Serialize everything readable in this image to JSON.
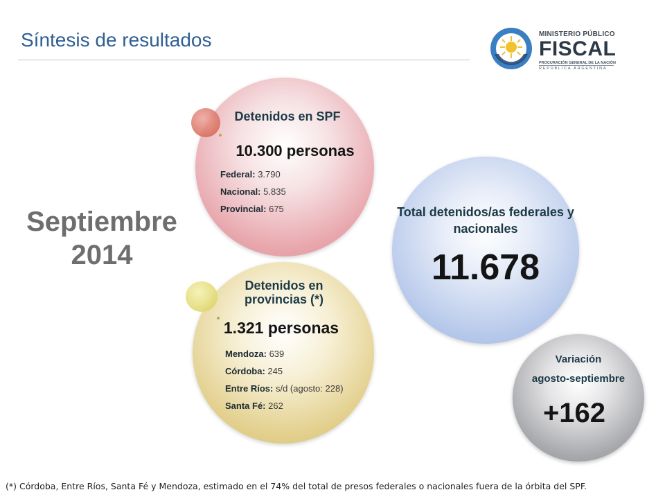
{
  "header": {
    "title": "Síntesis de resultados"
  },
  "logo": {
    "top_text": "MINISTERIO PÚBLICO",
    "main_text": "FISCAL",
    "sub_text_1": "PROCURACIÓN GENERAL DE LA NACIÓN",
    "sub_text_2": "REPÚBLICA ARGENTINA"
  },
  "period": {
    "month": "Septiembre",
    "year": "2014"
  },
  "spf": {
    "heading": "Detenidos en SPF",
    "total": "10.300 personas",
    "items": [
      {
        "label": "Federal:",
        "value": "3.790"
      },
      {
        "label": "Nacional:",
        "value": "5.835"
      },
      {
        "label": "Provincial:",
        "value": "675"
      }
    ]
  },
  "provinces": {
    "heading": "Detenidos en provincias (*)",
    "total": "1.321 personas",
    "items": [
      {
        "label": "Mendoza:",
        "value": "639"
      },
      {
        "label": "Córdoba:",
        "value": "245"
      },
      {
        "label": "Entre Ríos:",
        "value": "s/d (agosto: 228)"
      },
      {
        "label": "Santa Fé:",
        "value": "262"
      }
    ]
  },
  "total": {
    "heading": "Total detenidos/as federales y nacionales",
    "value": "11.678"
  },
  "variation": {
    "heading_1": "Variación",
    "heading_2": "agosto-septiembre",
    "value": "+162"
  },
  "footnote": "(*) Córdoba, Entre Ríos, Santa Fé y Mendoza, estimado en el 74% del total de presos federales o nacionales fuera de la órbita del SPF.",
  "colors": {
    "title": "#2f5f93",
    "spf_circle": "#e8a7ad",
    "provinces_circle": "#e3d08e",
    "total_circle": "#b6c8ea",
    "variation_circle": "#a7a8ac"
  }
}
